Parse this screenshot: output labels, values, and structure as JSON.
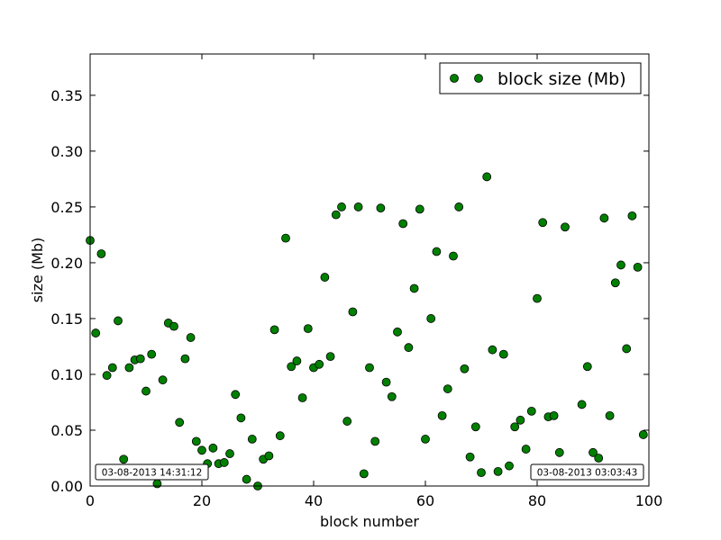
{
  "chart_data": {
    "type": "scatter",
    "xlabel": "block number",
    "ylabel": "size (Mb)",
    "xlim": [
      0,
      100
    ],
    "ylim": [
      0,
      0.387
    ],
    "xticks": [
      0,
      20,
      40,
      60,
      80,
      100
    ],
    "xtick_labels": [
      "0",
      "20",
      "40",
      "60",
      "80",
      "100"
    ],
    "yticks": [
      0.0,
      0.05,
      0.1,
      0.15,
      0.2,
      0.25,
      0.3,
      0.35
    ],
    "ytick_labels": [
      "0.00",
      "0.05",
      "0.10",
      "0.15",
      "0.20",
      "0.25",
      "0.30",
      "0.35"
    ],
    "grid": false,
    "legend_placement": "top-right",
    "marker_color": "#008000",
    "series": [
      {
        "name": "block size (Mb)",
        "x": [
          0,
          1,
          2,
          3,
          4,
          5,
          6,
          7,
          8,
          9,
          10,
          11,
          12,
          13,
          14,
          15,
          16,
          17,
          18,
          19,
          20,
          21,
          22,
          23,
          24,
          25,
          26,
          27,
          28,
          29,
          30,
          31,
          32,
          33,
          34,
          35,
          36,
          37,
          38,
          39,
          40,
          41,
          42,
          43,
          44,
          45,
          46,
          47,
          48,
          49,
          50,
          51,
          52,
          53,
          54,
          55,
          56,
          57,
          58,
          59,
          60,
          61,
          62,
          63,
          64,
          65,
          66,
          67,
          68,
          69,
          70,
          71,
          72,
          73,
          74,
          75,
          76,
          77,
          78,
          79,
          80,
          81,
          82,
          83,
          84,
          85,
          88,
          89,
          90,
          91,
          92,
          93,
          94,
          95,
          96,
          97,
          98,
          99
        ],
        "y": [
          0.22,
          0.137,
          0.208,
          0.099,
          0.106,
          0.148,
          0.024,
          0.106,
          0.113,
          0.114,
          0.085,
          0.118,
          0.002,
          0.095,
          0.146,
          0.143,
          0.057,
          0.114,
          0.133,
          0.04,
          0.032,
          0.02,
          0.034,
          0.02,
          0.021,
          0.029,
          0.082,
          0.061,
          0.006,
          0.042,
          0.0,
          0.024,
          0.027,
          0.14,
          0.045,
          0.222,
          0.107,
          0.112,
          0.079,
          0.141,
          0.106,
          0.109,
          0.187,
          0.116,
          0.243,
          0.25,
          0.058,
          0.156,
          0.25,
          0.011,
          0.106,
          0.04,
          0.249,
          0.093,
          0.08,
          0.138,
          0.235,
          0.124,
          0.177,
          0.248,
          0.042,
          0.15,
          0.21,
          0.063,
          0.087,
          0.206,
          0.25,
          0.105,
          0.026,
          0.053,
          0.012,
          0.277,
          0.122,
          0.013,
          0.118,
          0.018,
          0.053,
          0.059,
          0.033,
          0.067,
          0.168,
          0.236,
          0.062,
          0.063,
          0.03,
          0.232,
          0.073,
          0.107,
          0.03,
          0.025,
          0.24,
          0.063,
          0.182,
          0.198,
          0.123,
          0.242,
          0.196,
          0.046
        ]
      }
    ],
    "annotations": [
      {
        "text": "03-08-2013 14:31:12",
        "position": "bottom-left"
      },
      {
        "text": "03-08-2013 03:03:43",
        "position": "bottom-right"
      }
    ]
  }
}
